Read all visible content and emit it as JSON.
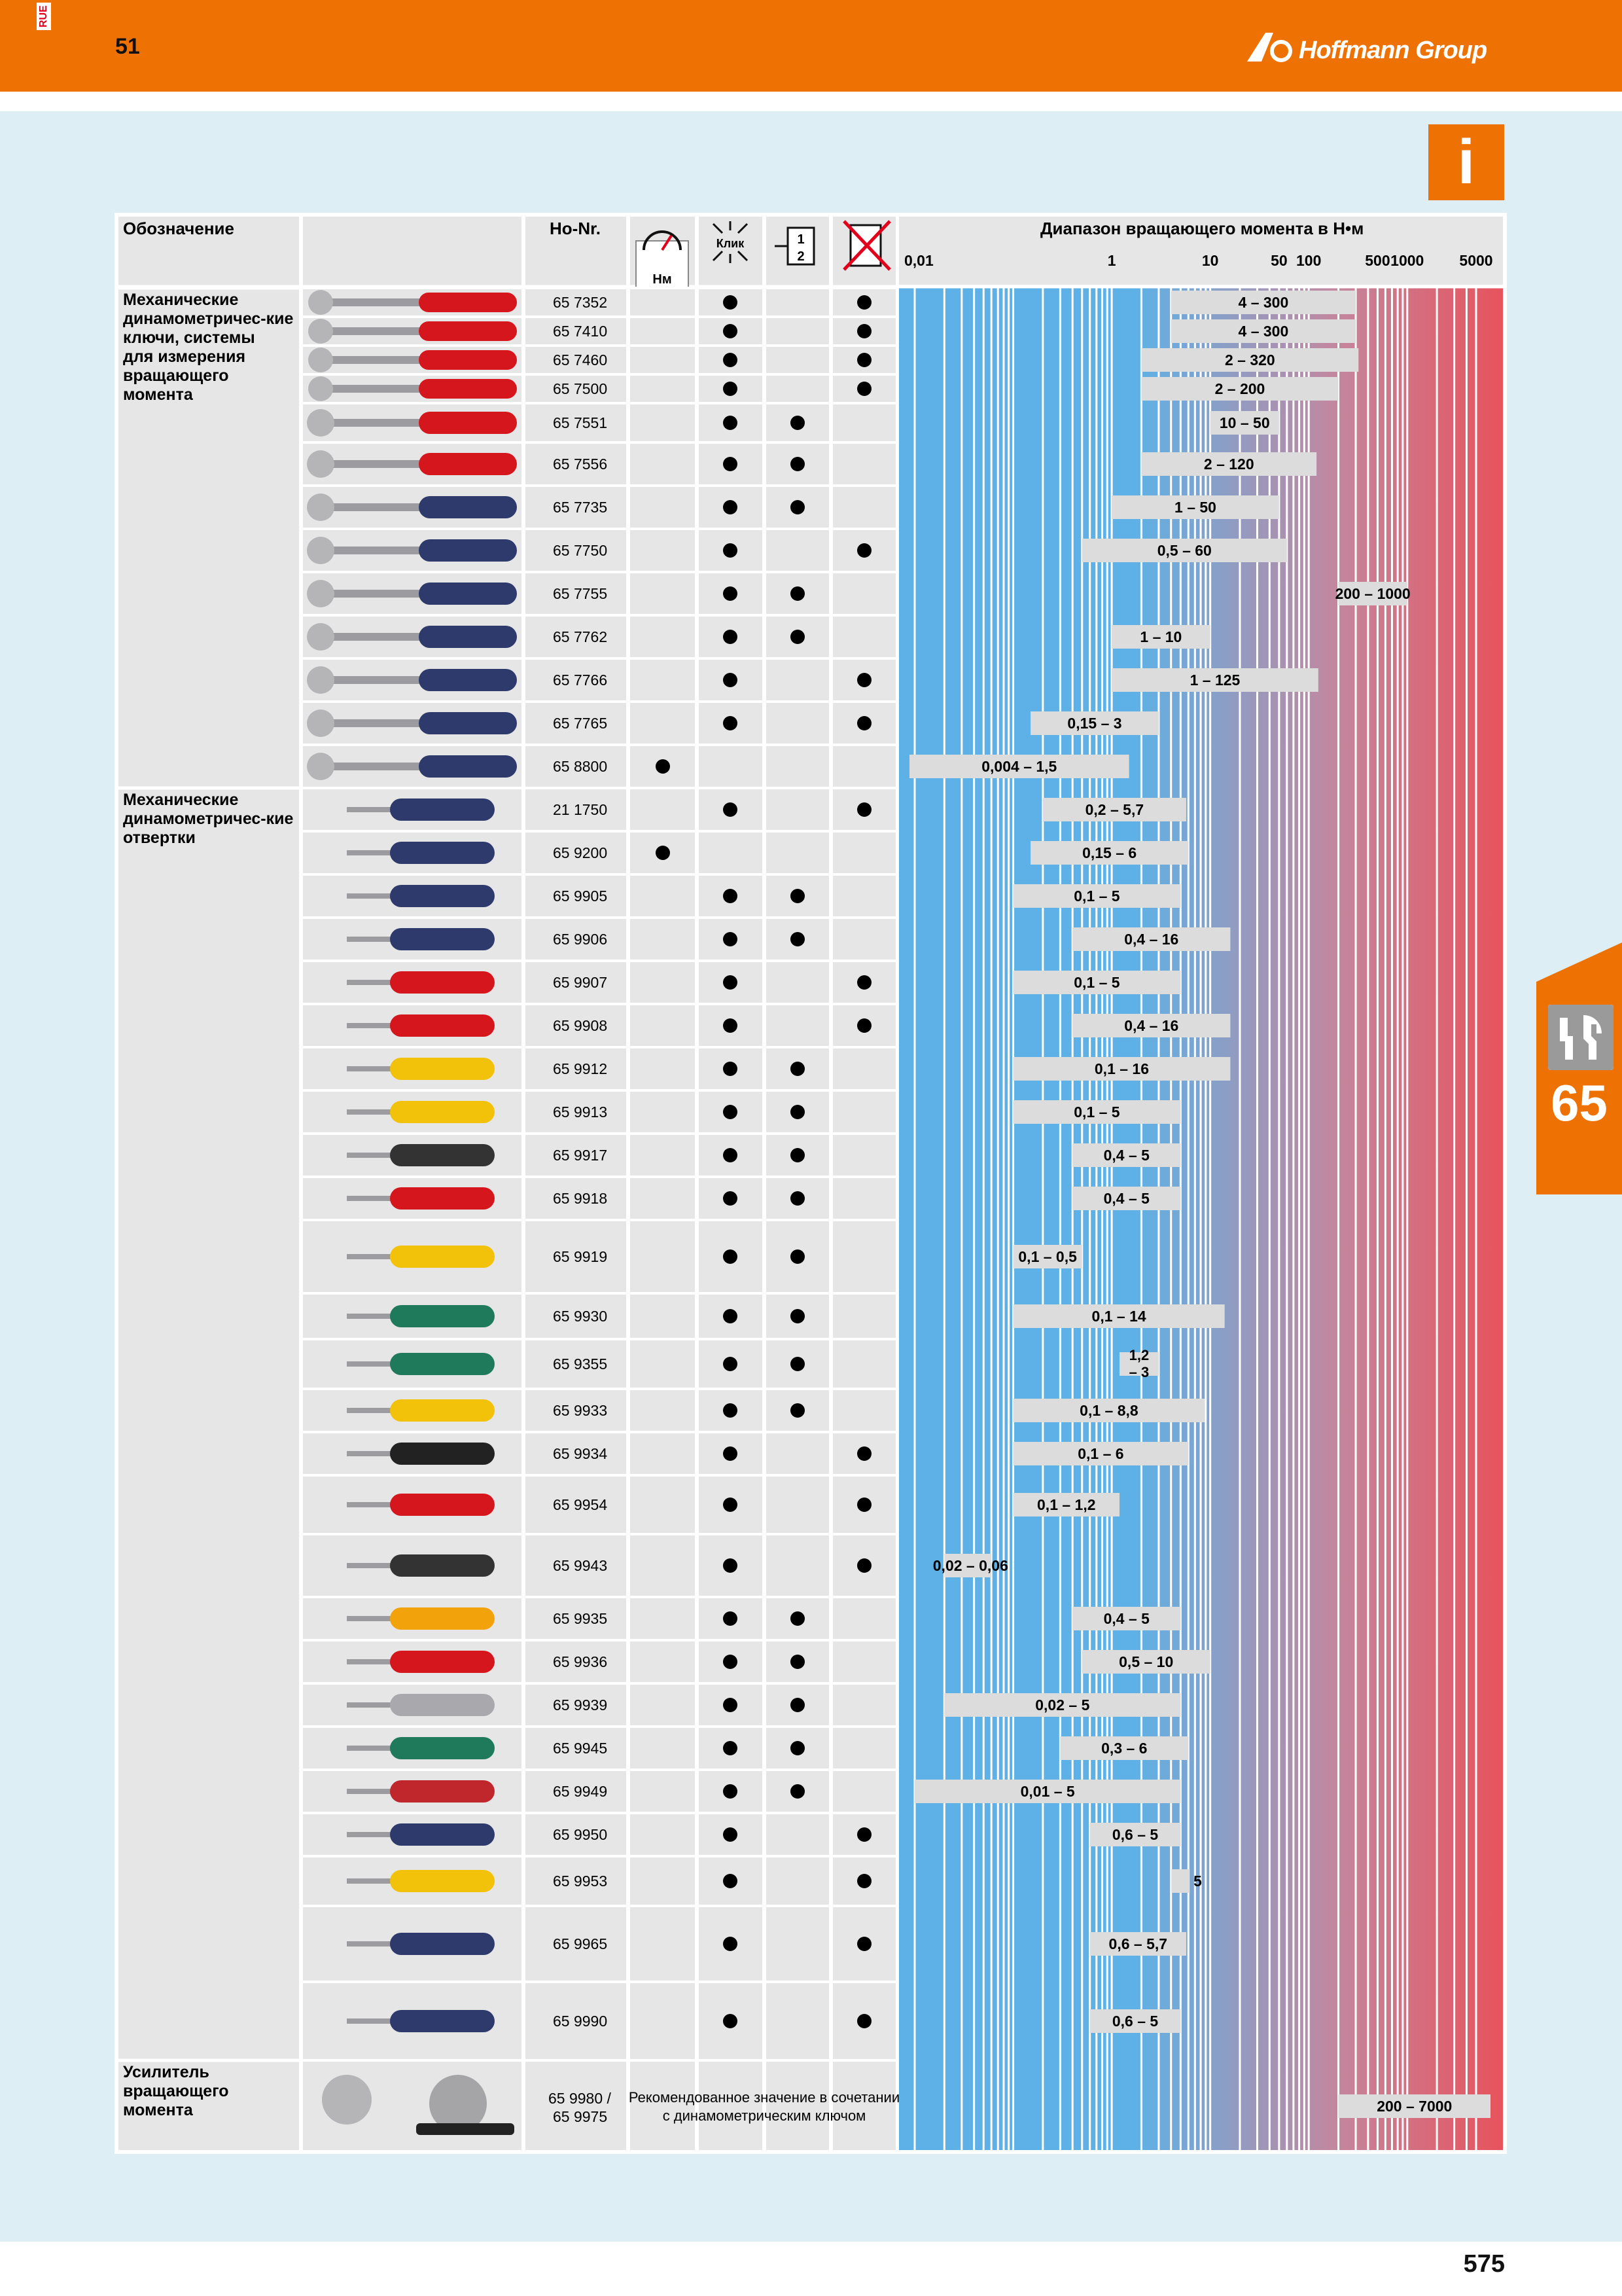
{
  "header": {
    "lang_code": "RUE",
    "catalog_chapter": "51",
    "brand": "Hoffmann Group"
  },
  "info_badge": "i",
  "side_tab": {
    "number": "65"
  },
  "page_number": "575",
  "table": {
    "columns": {
      "designation": "Обозначение",
      "ho_nr": "Ho-Nr.",
      "nm_icon_label": "Нм",
      "click_icon_label": "Клик",
      "torque_range": "Диапазон вращающего момента в Н•м"
    },
    "scale_ticks": [
      {
        "label": "0,01",
        "value": 0.01
      },
      {
        "label": "1",
        "value": 1
      },
      {
        "label": "10",
        "value": 10
      },
      {
        "label": "50",
        "value": 50
      },
      {
        "label": "100",
        "value": 100
      },
      {
        "label": "500",
        "value": 500
      },
      {
        "label": "1000",
        "value": 1000
      },
      {
        "label": "5000",
        "value": 5000
      }
    ],
    "groups": [
      {
        "label": "Механические динамометричес-кие ключи, системы для измерения вращающего момента"
      },
      {
        "label": "Механические динамометричес-кие отвертки"
      },
      {
        "label": "Усилитель вращающего момента"
      }
    ],
    "booster_note": "Рекомендованное значение в сочетании с динамометрическим ключом",
    "rows": [
      {
        "group": 0,
        "ho_nr": "65 7352",
        "nm": false,
        "click": true,
        "scale": false,
        "nooverload": true,
        "range": "4 – 300",
        "min": 4,
        "max": 300
      },
      {
        "group": 0,
        "ho_nr": "65 7410",
        "nm": false,
        "click": true,
        "scale": false,
        "nooverload": true,
        "range": "4 – 300",
        "min": 4,
        "max": 300
      },
      {
        "group": 0,
        "ho_nr": "65 7460",
        "nm": false,
        "click": true,
        "scale": false,
        "nooverload": true,
        "range": "2 – 320",
        "min": 2,
        "max": 320
      },
      {
        "group": 0,
        "ho_nr": "65 7500",
        "nm": false,
        "click": true,
        "scale": false,
        "nooverload": true,
        "range": "2 – 200",
        "min": 2,
        "max": 200
      },
      {
        "group": 0,
        "ho_nr": "65 7551",
        "nm": false,
        "click": true,
        "scale": true,
        "nooverload": false,
        "range": "10 – 50",
        "min": 10,
        "max": 50
      },
      {
        "group": 0,
        "ho_nr": "65 7556",
        "nm": false,
        "click": true,
        "scale": true,
        "nooverload": false,
        "range": "2 – 120",
        "min": 2,
        "max": 120
      },
      {
        "group": 0,
        "ho_nr": "65 7735",
        "nm": false,
        "click": true,
        "scale": true,
        "nooverload": false,
        "range": "1 – 50",
        "min": 1,
        "max": 50
      },
      {
        "group": 0,
        "ho_nr": "65 7750",
        "nm": false,
        "click": true,
        "scale": false,
        "nooverload": true,
        "range": "0,5 – 60",
        "min": 0.5,
        "max": 60
      },
      {
        "group": 0,
        "ho_nr": "65 7755",
        "nm": false,
        "click": true,
        "scale": true,
        "nooverload": false,
        "range": "200 – 1000",
        "min": 200,
        "max": 1000
      },
      {
        "group": 0,
        "ho_nr": "65 7762",
        "nm": false,
        "click": true,
        "scale": true,
        "nooverload": false,
        "range": "1 – 10",
        "min": 1,
        "max": 10
      },
      {
        "group": 0,
        "ho_nr": "65 7766",
        "nm": false,
        "click": true,
        "scale": false,
        "nooverload": true,
        "range": "1 – 125",
        "min": 1,
        "max": 125
      },
      {
        "group": 0,
        "ho_nr": "65 7765",
        "nm": false,
        "click": true,
        "scale": false,
        "nooverload": true,
        "range": "0,15 – 3",
        "min": 0.15,
        "max": 3
      },
      {
        "group": 0,
        "ho_nr": "65 8800",
        "nm": true,
        "click": false,
        "scale": false,
        "nooverload": false,
        "range": "0,004 – 1,5",
        "min": 0.004,
        "max": 1.5
      },
      {
        "group": 1,
        "ho_nr": "21 1750",
        "nm": false,
        "click": true,
        "scale": false,
        "nooverload": true,
        "range": "0,2 – 5,7",
        "min": 0.2,
        "max": 5.7
      },
      {
        "group": 1,
        "ho_nr": "65 9200",
        "nm": true,
        "click": false,
        "scale": false,
        "nooverload": false,
        "range": "0,15 – 6",
        "min": 0.15,
        "max": 6
      },
      {
        "group": 1,
        "ho_nr": "65 9905",
        "nm": false,
        "click": true,
        "scale": true,
        "nooverload": false,
        "range": "0,1 – 5",
        "min": 0.1,
        "max": 5
      },
      {
        "group": 1,
        "ho_nr": "65 9906",
        "nm": false,
        "click": true,
        "scale": true,
        "nooverload": false,
        "range": "0,4 – 16",
        "min": 0.4,
        "max": 16
      },
      {
        "group": 1,
        "ho_nr": "65 9907",
        "nm": false,
        "click": true,
        "scale": false,
        "nooverload": true,
        "range": "0,1 – 5",
        "min": 0.1,
        "max": 5
      },
      {
        "group": 1,
        "ho_nr": "65 9908",
        "nm": false,
        "click": true,
        "scale": false,
        "nooverload": true,
        "range": "0,4 – 16",
        "min": 0.4,
        "max": 16
      },
      {
        "group": 1,
        "ho_nr": "65 9912",
        "nm": false,
        "click": true,
        "scale": true,
        "nooverload": false,
        "range": "0,1 – 16",
        "min": 0.1,
        "max": 16
      },
      {
        "group": 1,
        "ho_nr": "65 9913",
        "nm": false,
        "click": true,
        "scale": true,
        "nooverload": false,
        "range": "0,1 – 5",
        "min": 0.1,
        "max": 5
      },
      {
        "group": 1,
        "ho_nr": "65 9917",
        "nm": false,
        "click": true,
        "scale": true,
        "nooverload": false,
        "range": "0,4 – 5",
        "min": 0.4,
        "max": 5
      },
      {
        "group": 1,
        "ho_nr": "65 9918",
        "nm": false,
        "click": true,
        "scale": true,
        "nooverload": false,
        "range": "0,4 – 5",
        "min": 0.4,
        "max": 5
      },
      {
        "group": 1,
        "ho_nr": "65 9919",
        "nm": false,
        "click": true,
        "scale": true,
        "nooverload": false,
        "range": "0,1 – 0,5",
        "min": 0.1,
        "max": 0.5
      },
      {
        "group": 1,
        "ho_nr": "65 9930",
        "nm": false,
        "click": true,
        "scale": true,
        "nooverload": false,
        "range": "0,1 – 14",
        "min": 0.1,
        "max": 14
      },
      {
        "group": 1,
        "ho_nr": "65 9355",
        "nm": false,
        "click": true,
        "scale": true,
        "nooverload": false,
        "range": "1,2 – 3",
        "min": 1.2,
        "max": 3
      },
      {
        "group": 1,
        "ho_nr": "65 9933",
        "nm": false,
        "click": true,
        "scale": true,
        "nooverload": false,
        "range": "0,1 – 8,8",
        "min": 0.1,
        "max": 8.8
      },
      {
        "group": 1,
        "ho_nr": "65 9934",
        "nm": false,
        "click": true,
        "scale": false,
        "nooverload": true,
        "range": "0,1 – 6",
        "min": 0.1,
        "max": 6
      },
      {
        "group": 1,
        "ho_nr": "65 9954",
        "nm": false,
        "click": true,
        "scale": false,
        "nooverload": true,
        "range": "0,1 – 1,2",
        "min": 0.1,
        "max": 1.2
      },
      {
        "group": 1,
        "ho_nr": "65 9943",
        "nm": false,
        "click": true,
        "scale": false,
        "nooverload": true,
        "range": "0,02 – 0,06",
        "min": 0.02,
        "max": 0.06
      },
      {
        "group": 1,
        "ho_nr": "65 9935",
        "nm": false,
        "click": true,
        "scale": true,
        "nooverload": false,
        "range": "0,4 – 5",
        "min": 0.4,
        "max": 5
      },
      {
        "group": 1,
        "ho_nr": "65 9936",
        "nm": false,
        "click": true,
        "scale": true,
        "nooverload": false,
        "range": "0,5 – 10",
        "min": 0.5,
        "max": 10
      },
      {
        "group": 1,
        "ho_nr": "65 9939",
        "nm": false,
        "click": true,
        "scale": true,
        "nooverload": false,
        "range": "0,02 – 5",
        "min": 0.02,
        "max": 5
      },
      {
        "group": 1,
        "ho_nr": "65 9945",
        "nm": false,
        "click": true,
        "scale": true,
        "nooverload": false,
        "range": "0,3 – 6",
        "min": 0.3,
        "max": 6
      },
      {
        "group": 1,
        "ho_nr": "65 9949",
        "nm": false,
        "click": true,
        "scale": true,
        "nooverload": false,
        "range": "0,01 – 5",
        "min": 0.01,
        "max": 5
      },
      {
        "group": 1,
        "ho_nr": "65 9950",
        "nm": false,
        "click": true,
        "scale": false,
        "nooverload": true,
        "range": "0,6 – 5",
        "min": 0.6,
        "max": 5
      },
      {
        "group": 1,
        "ho_nr": "65 9953",
        "nm": false,
        "click": true,
        "scale": false,
        "nooverload": true,
        "range": "5",
        "min": 5,
        "max": 5
      },
      {
        "group": 1,
        "ho_nr": "65 9965",
        "nm": false,
        "click": true,
        "scale": false,
        "nooverload": true,
        "range": "0,6 – 5,7",
        "min": 0.6,
        "max": 5.7
      },
      {
        "group": 1,
        "ho_nr": "65 9990",
        "nm": false,
        "click": true,
        "scale": false,
        "nooverload": true,
        "range": "0,6 – 5",
        "min": 0.6,
        "max": 5
      },
      {
        "group": 2,
        "ho_nr": "65 9980 / 65 9975",
        "nm": false,
        "click": false,
        "scale": false,
        "nooverload": false,
        "range": "200 – 7000",
        "min": 200,
        "max": 7000
      }
    ]
  },
  "colors": {
    "orange": "#ee7203",
    "light_blue_bg": "#ddeef4",
    "gradient_blue": "#5eb1e6",
    "gradient_red": "#e8525c",
    "range_bar": "#dcdcdc"
  }
}
